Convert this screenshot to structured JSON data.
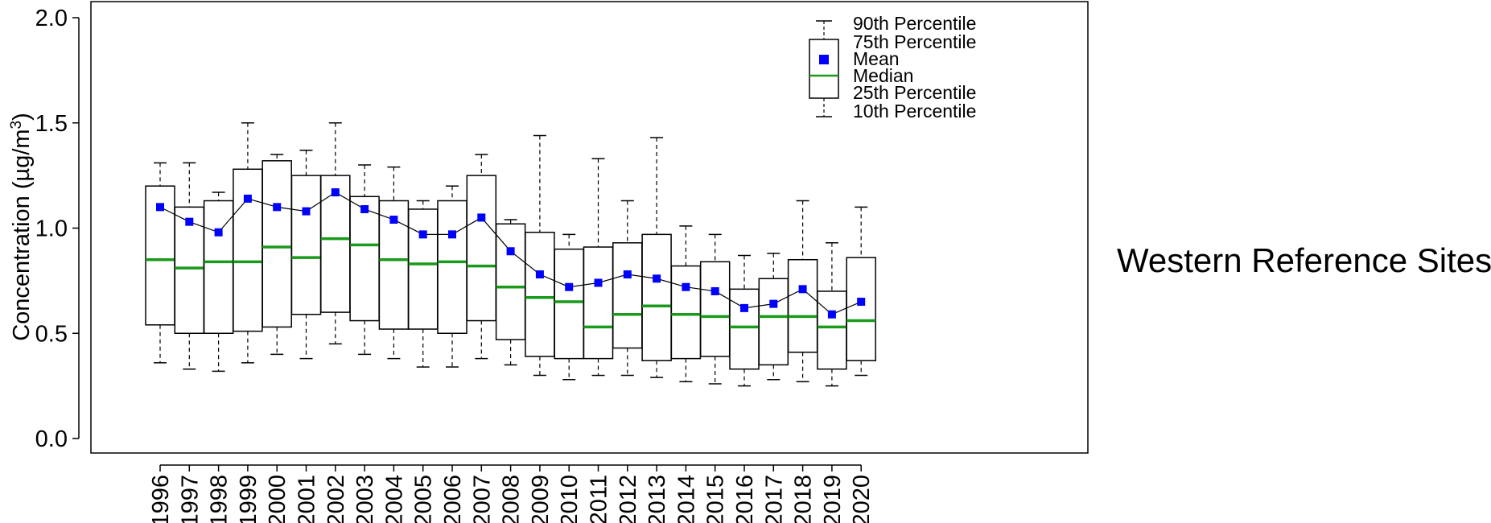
{
  "chart_data": {
    "type": "box",
    "ylabel": "Concentration (µg/m³)",
    "ylabel_base": "Concentration (µg/m",
    "ylabel_sup": "3",
    "ylabel_close": ")",
    "ylim": [
      0.0,
      2.0
    ],
    "yticks": [
      "0.0",
      "0.5",
      "1.0",
      "1.5",
      "2.0"
    ],
    "ytick_values": [
      0.0,
      0.5,
      1.0,
      1.5,
      2.0
    ],
    "categories": [
      "1996",
      "1997",
      "1998",
      "1999",
      "2000",
      "2001",
      "2002",
      "2003",
      "2004",
      "2005",
      "2006",
      "2007",
      "2008",
      "2009",
      "2010",
      "2011",
      "2012",
      "2013",
      "2014",
      "2015",
      "2016",
      "2017",
      "2018",
      "2019",
      "2020"
    ],
    "series": [
      {
        "name": "10th Percentile",
        "values": [
          0.36,
          0.33,
          0.32,
          0.36,
          0.4,
          0.38,
          0.45,
          0.4,
          0.38,
          0.34,
          0.34,
          0.38,
          0.35,
          0.3,
          0.28,
          0.3,
          0.3,
          0.29,
          0.27,
          0.26,
          0.25,
          0.28,
          0.27,
          0.25,
          0.3
        ]
      },
      {
        "name": "25th Percentile",
        "values": [
          0.54,
          0.5,
          0.5,
          0.51,
          0.53,
          0.59,
          0.6,
          0.56,
          0.52,
          0.52,
          0.5,
          0.56,
          0.47,
          0.39,
          0.38,
          0.38,
          0.43,
          0.37,
          0.38,
          0.39,
          0.33,
          0.35,
          0.41,
          0.33,
          0.37
        ]
      },
      {
        "name": "Median",
        "values": [
          0.85,
          0.81,
          0.84,
          0.84,
          0.91,
          0.86,
          0.95,
          0.92,
          0.85,
          0.83,
          0.84,
          0.82,
          0.72,
          0.67,
          0.65,
          0.53,
          0.59,
          0.63,
          0.59,
          0.58,
          0.53,
          0.58,
          0.58,
          0.53,
          0.56
        ]
      },
      {
        "name": "Mean",
        "values": [
          1.1,
          1.03,
          0.98,
          1.14,
          1.1,
          1.08,
          1.17,
          1.09,
          1.04,
          0.97,
          0.97,
          1.05,
          0.89,
          0.78,
          0.72,
          0.74,
          0.78,
          0.76,
          0.72,
          0.7,
          0.62,
          0.64,
          0.71,
          0.59,
          0.65
        ]
      },
      {
        "name": "75th Percentile",
        "values": [
          1.2,
          1.1,
          1.13,
          1.28,
          1.32,
          1.25,
          1.25,
          1.15,
          1.13,
          1.09,
          1.13,
          1.25,
          1.02,
          0.98,
          0.9,
          0.91,
          0.93,
          0.97,
          0.82,
          0.84,
          0.71,
          0.76,
          0.85,
          0.7,
          0.86
        ]
      },
      {
        "name": "90th Percentile",
        "values": [
          1.31,
          1.31,
          1.17,
          1.5,
          1.35,
          1.37,
          1.5,
          1.3,
          1.29,
          1.13,
          1.2,
          1.35,
          1.04,
          1.44,
          0.97,
          1.33,
          1.13,
          1.43,
          1.01,
          0.97,
          0.87,
          0.88,
          1.13,
          0.93,
          1.1
        ]
      }
    ],
    "legend": {
      "placement": "top-right",
      "entries": [
        "90th Percentile",
        "75th Percentile",
        "Mean",
        "Median",
        "25th Percentile",
        "10th Percentile"
      ]
    },
    "colors": {
      "mean": "#0000ff",
      "median": "#1a9a1a",
      "box": "#000000"
    },
    "annotation": "Western Reference Sites"
  }
}
